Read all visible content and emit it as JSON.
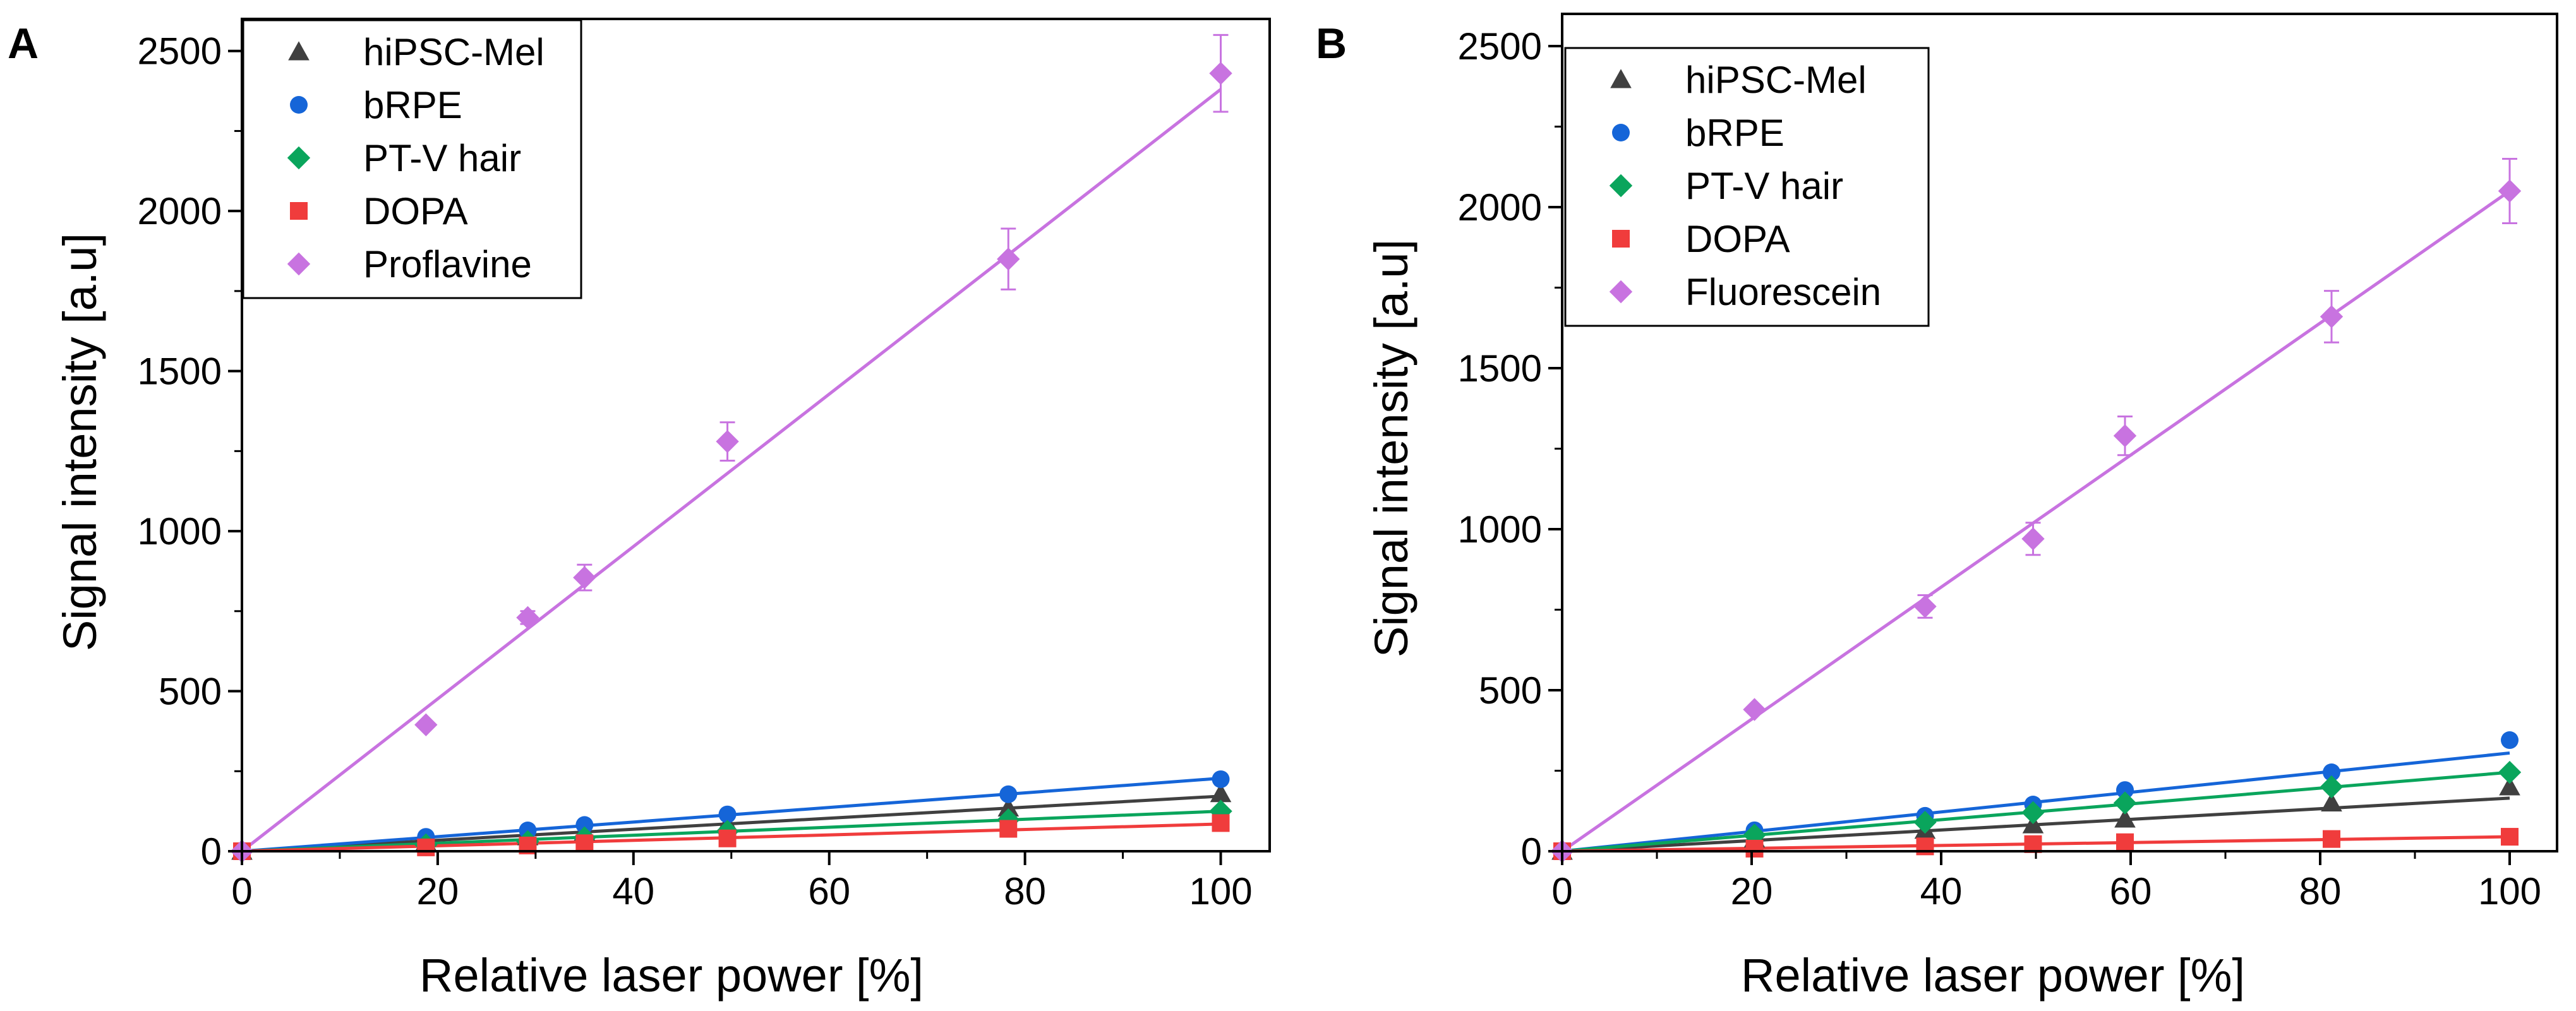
{
  "chart_data": [
    {
      "panel": "A",
      "type": "scatter",
      "xlabel": "Relative laser power [%]",
      "ylabel": "Signal intensity [a.u]",
      "xlim": [
        0,
        105
      ],
      "ylim": [
        0,
        2600
      ],
      "xticks": [
        0,
        20,
        40,
        60,
        80,
        100
      ],
      "yticks": [
        0,
        500,
        1000,
        1500,
        2000,
        2500
      ],
      "legend_position": "top-left",
      "series": [
        {
          "name": "hiPSC-Mel",
          "marker": "triangle",
          "color": "#404040",
          "x": [
            0,
            18.8,
            29.2,
            35.0,
            49.6,
            78.3,
            100
          ],
          "y": [
            0,
            28,
            45,
            60,
            85,
            135,
            180
          ],
          "fit_end": 172
        },
        {
          "name": "bRPE",
          "marker": "circle",
          "color": "#1565d8",
          "x": [
            0,
            18.8,
            29.2,
            35.0,
            49.6,
            78.3,
            100
          ],
          "y": [
            0,
            45,
            65,
            82,
            115,
            178,
            225
          ],
          "fit_end": 228
        },
        {
          "name": "PT-V hair",
          "marker": "diamond",
          "color": "#0aa55c",
          "x": [
            0,
            18.8,
            29.2,
            35.0,
            49.6,
            78.3,
            100
          ],
          "y": [
            0,
            20,
            30,
            42,
            62,
            98,
            125
          ],
          "fit_end": 125
        },
        {
          "name": "DOPA",
          "marker": "square",
          "color": "#f03c3c",
          "x": [
            0,
            18.8,
            29.2,
            35.0,
            49.6,
            78.3,
            100
          ],
          "y": [
            0,
            12,
            18,
            25,
            40,
            70,
            88
          ],
          "fit_end": 85
        },
        {
          "name": "Proflavine",
          "marker": "diamond",
          "color": "#c873e0",
          "x": [
            0,
            18.8,
            29.2,
            35.0,
            49.6,
            78.3,
            100
          ],
          "y": [
            0,
            395,
            730,
            855,
            1280,
            1850,
            2430
          ],
          "err": [
            0,
            0,
            20,
            40,
            60,
            95,
            120
          ],
          "fit_end": 2380
        }
      ]
    },
    {
      "panel": "B",
      "type": "scatter",
      "xlabel": "Relative laser power [%]",
      "ylabel": "Signal intensity [a.u]",
      "xlim": [
        0,
        105
      ],
      "ylim": [
        0,
        2600
      ],
      "xticks": [
        0,
        20,
        40,
        60,
        80,
        100
      ],
      "yticks": [
        0,
        500,
        1000,
        1500,
        2000,
        2500
      ],
      "legend_position": "top-left",
      "series": [
        {
          "name": "hiPSC-Mel",
          "marker": "triangle",
          "color": "#404040",
          "x": [
            0,
            20.3,
            38.3,
            49.7,
            59.4,
            81.2,
            100
          ],
          "y": [
            0,
            38,
            65,
            82,
            100,
            150,
            200
          ],
          "fit_end": 165
        },
        {
          "name": "bRPE",
          "marker": "circle",
          "color": "#1565d8",
          "x": [
            0,
            20.3,
            38.3,
            49.7,
            59.4,
            81.2,
            100
          ],
          "y": [
            0,
            65,
            110,
            145,
            190,
            245,
            345
          ],
          "fit_end": 305
        },
        {
          "name": "PT-V hair",
          "marker": "diamond",
          "color": "#0aa55c",
          "x": [
            0,
            20.3,
            38.3,
            49.7,
            59.4,
            81.2,
            100
          ],
          "y": [
            0,
            50,
            90,
            120,
            150,
            200,
            245
          ],
          "fit_end": 245
        },
        {
          "name": "DOPA",
          "marker": "square",
          "color": "#f03c3c",
          "x": [
            0,
            20.3,
            38.3,
            49.7,
            59.4,
            81.2,
            100
          ],
          "y": [
            0,
            8,
            15,
            22,
            28,
            38,
            45
          ],
          "fit_end": 45
        },
        {
          "name": "Fluorescein",
          "marker": "diamond",
          "color": "#c873e0",
          "x": [
            0,
            20.3,
            38.3,
            49.7,
            59.4,
            81.2,
            100
          ],
          "y": [
            0,
            440,
            760,
            970,
            1290,
            1660,
            2050
          ],
          "err": [
            0,
            0,
            35,
            50,
            60,
            80,
            100
          ],
          "fit_end": 2050
        }
      ]
    }
  ]
}
